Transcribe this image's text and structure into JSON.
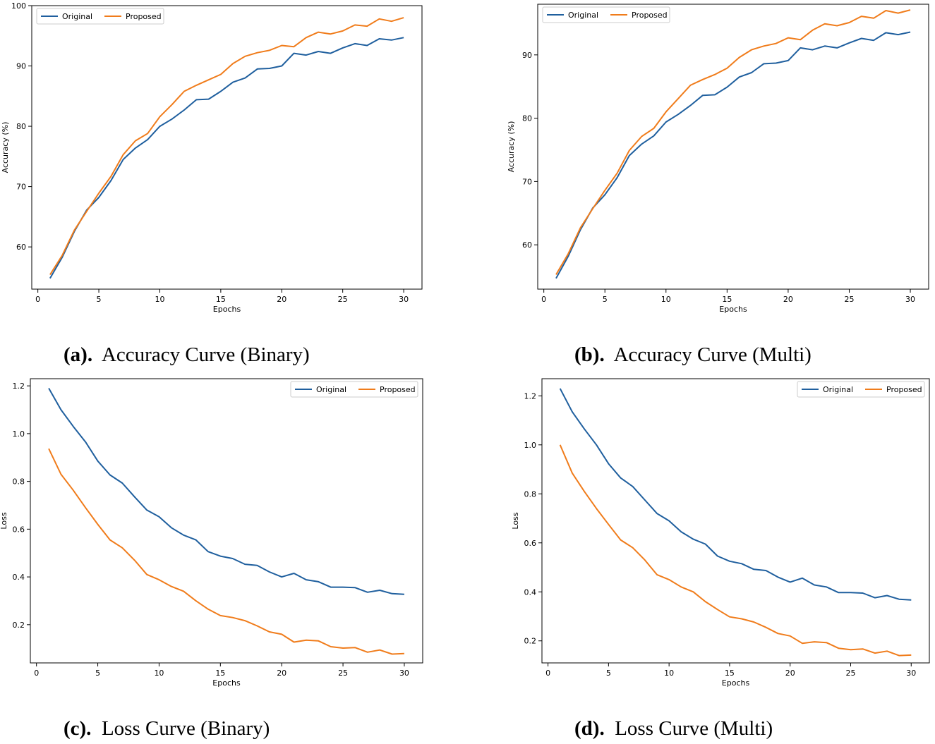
{
  "chart_data": [
    {
      "id": "a",
      "type": "line",
      "title": "",
      "xlabel": "Epochs",
      "ylabel": "Accuracy (%)",
      "xlim": [
        -0.5,
        31.5
      ],
      "ylim": [
        53,
        100
      ],
      "xticks": [
        0,
        5,
        10,
        15,
        20,
        25,
        30
      ],
      "yticks": [
        60,
        70,
        80,
        90,
        100
      ],
      "legend": "top-left",
      "grid": false,
      "x": [
        1,
        2,
        3,
        4,
        5,
        6,
        7,
        8,
        9,
        10,
        11,
        12,
        13,
        14,
        15,
        16,
        17,
        18,
        19,
        20,
        21,
        22,
        23,
        24,
        25,
        26,
        27,
        28,
        29,
        30
      ],
      "series": [
        {
          "name": "Original",
          "color": "#1f5f9e",
          "values": [
            54.8,
            58.3,
            62.6,
            66.1,
            68.2,
            71.0,
            74.5,
            76.4,
            77.8,
            80.0,
            81.2,
            82.7,
            84.4,
            84.5,
            85.8,
            87.3,
            88.0,
            89.5,
            89.6,
            90.0,
            92.1,
            91.8,
            92.4,
            92.1,
            93.0,
            93.7,
            93.4,
            94.5,
            94.3,
            94.7
          ]
        },
        {
          "name": "Proposed",
          "color": "#f07c1b",
          "values": [
            55.4,
            58.6,
            62.8,
            65.9,
            68.9,
            71.7,
            75.3,
            77.6,
            78.8,
            81.6,
            83.6,
            85.8,
            86.8,
            87.7,
            88.6,
            90.4,
            91.6,
            92.2,
            92.6,
            93.4,
            93.2,
            94.7,
            95.6,
            95.3,
            95.8,
            96.8,
            96.6,
            97.8,
            97.4,
            98.0
          ]
        }
      ],
      "caption_label": "(a).",
      "caption_text": "Accuracy Curve (Binary)"
    },
    {
      "id": "b",
      "type": "line",
      "title": "",
      "xlabel": "Epochs",
      "ylabel": "Accuracy (%)",
      "xlim": [
        -0.5,
        31.5
      ],
      "ylim": [
        53,
        98
      ],
      "xticks": [
        0,
        5,
        10,
        15,
        20,
        25,
        30
      ],
      "yticks": [
        60,
        70,
        80,
        90
      ],
      "legend": "top-left",
      "grid": false,
      "x": [
        1,
        2,
        3,
        4,
        5,
        6,
        7,
        8,
        9,
        10,
        11,
        12,
        13,
        14,
        15,
        16,
        17,
        18,
        19,
        20,
        21,
        22,
        23,
        24,
        25,
        26,
        27,
        28,
        29,
        30
      ],
      "series": [
        {
          "name": "Original",
          "color": "#1f5f9e",
          "values": [
            54.7,
            58.2,
            62.4,
            65.8,
            67.9,
            70.6,
            74.1,
            75.9,
            77.2,
            79.4,
            80.6,
            82.0,
            83.6,
            83.7,
            84.9,
            86.5,
            87.2,
            88.6,
            88.7,
            89.1,
            91.1,
            90.8,
            91.4,
            91.1,
            91.9,
            92.6,
            92.3,
            93.5,
            93.2,
            93.6
          ]
        },
        {
          "name": "Proposed",
          "color": "#f07c1b",
          "values": [
            55.3,
            58.6,
            62.7,
            65.7,
            68.6,
            71.3,
            74.9,
            77.1,
            78.4,
            81.0,
            83.1,
            85.2,
            86.1,
            86.9,
            87.9,
            89.6,
            90.8,
            91.4,
            91.8,
            92.7,
            92.4,
            93.9,
            94.9,
            94.6,
            95.1,
            96.1,
            95.8,
            97.0,
            96.6,
            97.1
          ]
        }
      ],
      "caption_label": "(b).",
      "caption_text": "Accuracy Curve (Multi)"
    },
    {
      "id": "c",
      "type": "line",
      "title": "",
      "xlabel": "Epochs",
      "ylabel": "Loss",
      "xlim": [
        -0.5,
        31.5
      ],
      "ylim": [
        0.04,
        1.23
      ],
      "xticks": [
        0,
        5,
        10,
        15,
        20,
        25,
        30
      ],
      "yticks": [
        0.2,
        0.4,
        0.6,
        0.8,
        1.0,
        1.2
      ],
      "legend": "top-right",
      "grid": false,
      "x": [
        1,
        2,
        3,
        4,
        5,
        6,
        7,
        8,
        9,
        10,
        11,
        12,
        13,
        14,
        15,
        16,
        17,
        18,
        19,
        20,
        21,
        22,
        23,
        24,
        25,
        26,
        27,
        28,
        29,
        30
      ],
      "series": [
        {
          "name": "Original",
          "color": "#1f5f9e",
          "values": [
            1.19,
            1.1,
            1.03,
            0.965,
            0.885,
            0.827,
            0.793,
            0.735,
            0.68,
            0.652,
            0.606,
            0.575,
            0.555,
            0.506,
            0.487,
            0.477,
            0.453,
            0.448,
            0.421,
            0.4,
            0.415,
            0.388,
            0.38,
            0.357,
            0.357,
            0.355,
            0.336,
            0.344,
            0.33,
            0.327
          ]
        },
        {
          "name": "Proposed",
          "color": "#f07c1b",
          "values": [
            0.937,
            0.83,
            0.763,
            0.69,
            0.62,
            0.555,
            0.522,
            0.47,
            0.41,
            0.388,
            0.36,
            0.34,
            0.3,
            0.265,
            0.238,
            0.23,
            0.217,
            0.195,
            0.17,
            0.16,
            0.127,
            0.135,
            0.132,
            0.108,
            0.102,
            0.104,
            0.085,
            0.094,
            0.077,
            0.079
          ]
        }
      ],
      "caption_label": "(c).",
      "caption_text": "Loss Curve (Binary)"
    },
    {
      "id": "d",
      "type": "line",
      "title": "",
      "xlabel": "Epochs",
      "ylabel": "Loss",
      "xlim": [
        -0.5,
        31.5
      ],
      "ylim": [
        0.11,
        1.27
      ],
      "xticks": [
        0,
        5,
        10,
        15,
        20,
        25,
        30
      ],
      "yticks": [
        0.2,
        0.4,
        0.6,
        0.8,
        1.0,
        1.2
      ],
      "legend": "top-right",
      "grid": false,
      "x": [
        1,
        2,
        3,
        4,
        5,
        6,
        7,
        8,
        9,
        10,
        11,
        12,
        13,
        14,
        15,
        16,
        17,
        18,
        19,
        20,
        21,
        22,
        23,
        24,
        25,
        26,
        27,
        28,
        29,
        30
      ],
      "series": [
        {
          "name": "Original",
          "color": "#1f5f9e",
          "values": [
            1.23,
            1.135,
            1.065,
            1.0,
            0.923,
            0.865,
            0.83,
            0.775,
            0.72,
            0.69,
            0.645,
            0.615,
            0.595,
            0.546,
            0.525,
            0.515,
            0.492,
            0.487,
            0.46,
            0.44,
            0.456,
            0.428,
            0.42,
            0.397,
            0.397,
            0.395,
            0.376,
            0.385,
            0.37,
            0.367
          ]
        },
        {
          "name": "Proposed",
          "color": "#f07c1b",
          "values": [
            1.0,
            0.885,
            0.81,
            0.74,
            0.675,
            0.612,
            0.58,
            0.53,
            0.47,
            0.45,
            0.42,
            0.4,
            0.36,
            0.328,
            0.298,
            0.29,
            0.277,
            0.255,
            0.23,
            0.22,
            0.19,
            0.196,
            0.193,
            0.17,
            0.164,
            0.167,
            0.15,
            0.158,
            0.14,
            0.142
          ]
        }
      ],
      "caption_label": "(d).",
      "caption_text": "Loss Curve (Multi)"
    }
  ]
}
